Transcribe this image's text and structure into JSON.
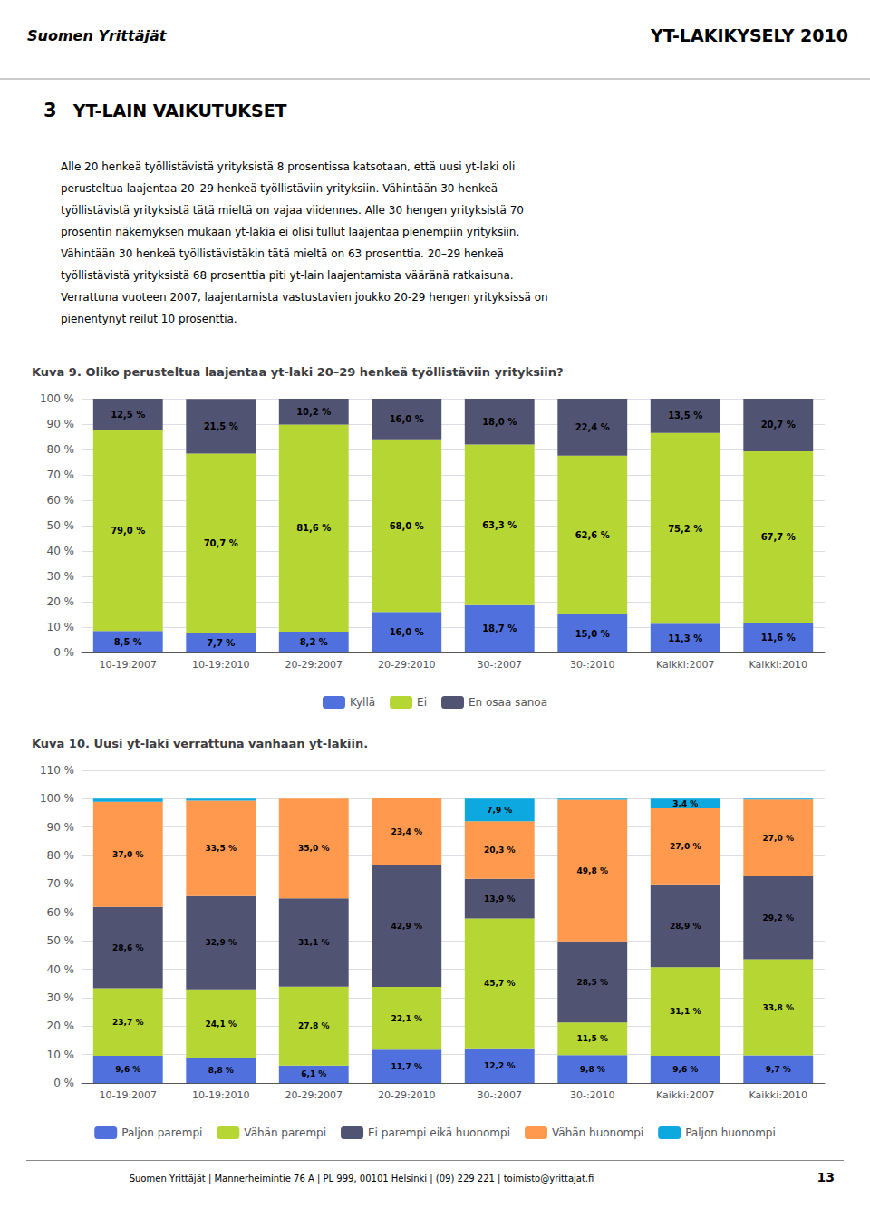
{
  "chart_data": [
    {
      "type": "bar",
      "title": "Kuva 9. Oliko perusteltua laajentaa yt-laki 20–29 henkeä työllistäviin yrityksiin?",
      "annotations": [
        "Suomen Yrittäjät",
        "YT-LAKIKYSELY 2010",
        "3",
        "YT-LAIN VAIKUTUKSET",
        "Alle 20 henkeä työllistävistä yrityksistä 8 prosentissa katsotaan, että uusi yt-laki oli",
        "perusteltua laajentaa 20–29 henkeä työllistäviin yrityksiin. Vähintään 30 henkeä",
        "työllistävistä yrityksistä tätä mieltä on vajaa viidennes. Alle 30 hengen yrityksistä 70",
        "prosentin näkemyksen mukaan yt-lakia ei olisi tullut laajentaa pienempiin yrityksiin.",
        "Vähintään 30 henkeä työllistävistäkin tätä mieltä on 63 prosenttia. 20–29 henkeä",
        "työllistävistä yrityksistä 68 prosenttia piti yt-lain laajentamista vääränä ratkaisuna.",
        "Verrattuna vuoteen 2007, laajentamista vastustavien joukko 20-29 hengen yrityksissä on",
        "pienentynyt reilut 10 prosenttia."
      ],
      "categories": [
        "10-19:2007",
        "10-19:2010",
        "20-29:2007",
        "20-29:2010",
        "30-:2007",
        "30-:2010",
        "Kaikki:2007",
        "Kaikki:2010"
      ],
      "series": [
        {
          "name": "Kyllä",
          "values": [
            8.5,
            7.7,
            8.2,
            16.0,
            18.7,
            15.0,
            11.3,
            11.6
          ],
          "value_labels": [
            "8,5 %",
            "7,7 %",
            "8,2 %",
            "16,0 %",
            "18,7 %",
            "15,0 %",
            "11,3 %",
            "11,6 %"
          ]
        },
        {
          "name": "Ei",
          "values": [
            79.0,
            70.7,
            81.6,
            68.0,
            63.3,
            62.6,
            75.2,
            67.7
          ],
          "value_labels": [
            "79,0 %",
            "70,7 %",
            "81,6 %",
            "68,0 %",
            "63,3 %",
            "62,6 %",
            "75,2 %",
            "67,7 %"
          ]
        },
        {
          "name": "En osaa sanoa",
          "values": [
            12.5,
            21.5,
            10.2,
            16.0,
            18.0,
            22.4,
            13.5,
            20.7
          ],
          "value_labels": [
            "12,5 %",
            "21,5 %",
            "10,2 %",
            "16,0 %",
            "18,0 %",
            "22,4 %",
            "13,5 %",
            "20,7 %"
          ]
        }
      ],
      "ylim": [
        0,
        100
      ],
      "yticks": [
        {
          "value": 0,
          "label": "0 %"
        },
        {
          "value": 10,
          "label": "10 %"
        },
        {
          "value": 20,
          "label": "20 %"
        },
        {
          "value": 30,
          "label": "30 %"
        },
        {
          "value": 40,
          "label": "40 %"
        },
        {
          "value": 50,
          "label": "50 %"
        },
        {
          "value": 60,
          "label": "60 %"
        },
        {
          "value": 70,
          "label": "70 %"
        },
        {
          "value": 80,
          "label": "80 %"
        },
        {
          "value": 90,
          "label": "90 %"
        },
        {
          "value": 100,
          "label": "100 %"
        }
      ],
      "stacked": true,
      "grid": true,
      "legend": "bottom",
      "data_labels": true
    },
    {
      "type": "bar",
      "title": "Kuva 10. Uusi yt-laki verrattuna vanhaan yt-lakiin.",
      "annotations": [
        "Suomen Yrittäjät  |  Mannerheimintie 76 A  |  PL 999, 00101 Helsinki  |  (09) 229 221  |  toimisto@yrittajat.fi",
        "13"
      ],
      "categories": [
        "10-19:2007",
        "10-19:2010",
        "20-29:2007",
        "20-29:2010",
        "30-:2007",
        "30-:2010",
        "Kaikki:2007",
        "Kaikki:2010"
      ],
      "series": [
        {
          "name": "Paljon parempi",
          "values": [
            9.6,
            8.8,
            6.1,
            11.7,
            12.2,
            9.8,
            9.6,
            9.7
          ],
          "value_labels": [
            "9,6 %",
            "8,8 %",
            "6,1 %",
            "11,7 %",
            "12,2 %",
            "9,8 %",
            "9,6 %",
            "9,7 %"
          ]
        },
        {
          "name": "Vähän parempi",
          "values": [
            23.7,
            24.1,
            27.8,
            22.1,
            45.7,
            11.5,
            31.1,
            33.8
          ],
          "value_labels": [
            "23,7 %",
            "24,1 %",
            "27,8 %",
            "22,1 %",
            "45,7 %",
            "11,5 %",
            "31,1 %",
            "33,8 %"
          ]
        },
        {
          "name": "Ei parempi eikä huonompi",
          "values": [
            28.6,
            32.9,
            31.1,
            42.9,
            13.9,
            28.5,
            28.9,
            29.2
          ],
          "value_labels": [
            "28,6 %",
            "32,9 %",
            "31,1 %",
            "42,9 %",
            "13,9 %",
            "28,5 %",
            "28,9 %",
            "29,2 %"
          ]
        },
        {
          "name": "Vähän huonompi",
          "values": [
            37.0,
            33.5,
            35.0,
            23.4,
            20.3,
            49.8,
            27.0,
            27.0
          ],
          "value_labels": [
            "37,0 %",
            "33,5 %",
            "35,0 %",
            "23,4 %",
            "20,3 %",
            "49,8 %",
            "27,0 %",
            "27,0 %"
          ]
        },
        {
          "name": "Paljon huonompi",
          "values": [
            1.1,
            0.7,
            0.0,
            0.0,
            7.9,
            0.4,
            3.4,
            0.3
          ],
          "value_labels": [
            null,
            null,
            null,
            null,
            "7,9 %",
            null,
            "3,4 %",
            null
          ]
        }
      ],
      "ylim": [
        0,
        110
      ],
      "yticks": [
        {
          "value": 0,
          "label": "0 %"
        },
        {
          "value": 10,
          "label": "10 %"
        },
        {
          "value": 20,
          "label": "20 %"
        },
        {
          "value": 30,
          "label": "30 %"
        },
        {
          "value": 40,
          "label": "40 %"
        },
        {
          "value": 50,
          "label": "50 %"
        },
        {
          "value": 60,
          "label": "60 %"
        },
        {
          "value": 70,
          "label": "70 %"
        },
        {
          "value": 80,
          "label": "80 %"
        },
        {
          "value": 90,
          "label": "90 %"
        },
        {
          "value": 100,
          "label": "100 %"
        },
        {
          "value": 110,
          "label": "110 %"
        }
      ],
      "stacked": true,
      "grid": true,
      "legend": "bottom",
      "data_labels": true
    }
  ]
}
